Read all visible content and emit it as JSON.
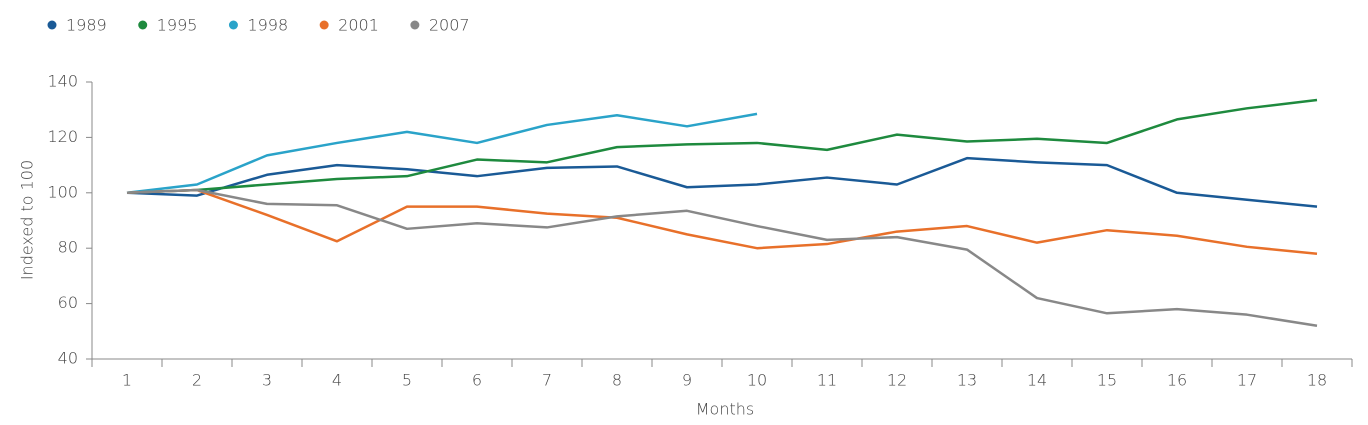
{
  "chart_data": {
    "type": "line",
    "x_label": "Months",
    "y_label": "Indexed to 100",
    "categories": [
      "1",
      "2",
      "3",
      "4",
      "5",
      "6",
      "7",
      "8",
      "9",
      "10",
      "11",
      "12",
      "13",
      "14",
      "15",
      "16",
      "17",
      "18"
    ],
    "series": [
      {
        "name": "1989",
        "color": "#1a5a96",
        "values": [
          100,
          99,
          106.5,
          110,
          108.5,
          106,
          109,
          109.5,
          102,
          103,
          105.5,
          103,
          112.5,
          111,
          110,
          100,
          97.5,
          95
        ]
      },
      {
        "name": "1995",
        "color": "#1e8a3e",
        "values": [
          100,
          101,
          103,
          105,
          106,
          112,
          111,
          116.5,
          117.5,
          118,
          115.5,
          121,
          118.5,
          119.5,
          118,
          126.5,
          130.5,
          133.5
        ]
      },
      {
        "name": "1998",
        "color": "#2aa3c9",
        "values": [
          100,
          103,
          113.5,
          118,
          122,
          118,
          124.5,
          128,
          124,
          128.5,
          null,
          null,
          null,
          null,
          null,
          null,
          null,
          null
        ]
      },
      {
        "name": "2001",
        "color": "#e8702a",
        "values": [
          100,
          101,
          92,
          82.5,
          95,
          95,
          92.5,
          91,
          85,
          80,
          81.5,
          86,
          88,
          82,
          86.5,
          84.5,
          80.5,
          78
        ]
      },
      {
        "name": "2007",
        "color": "#888888",
        "values": [
          100,
          101,
          96,
          95.5,
          87,
          89,
          87.5,
          91.5,
          93.5,
          88,
          83,
          84,
          79.5,
          62,
          56.5,
          58,
          56,
          52
        ]
      }
    ],
    "ylim": [
      40,
      140
    ],
    "yticks": [
      40,
      60,
      80,
      100,
      120,
      140
    ],
    "grid": false,
    "legend": "top-left"
  }
}
